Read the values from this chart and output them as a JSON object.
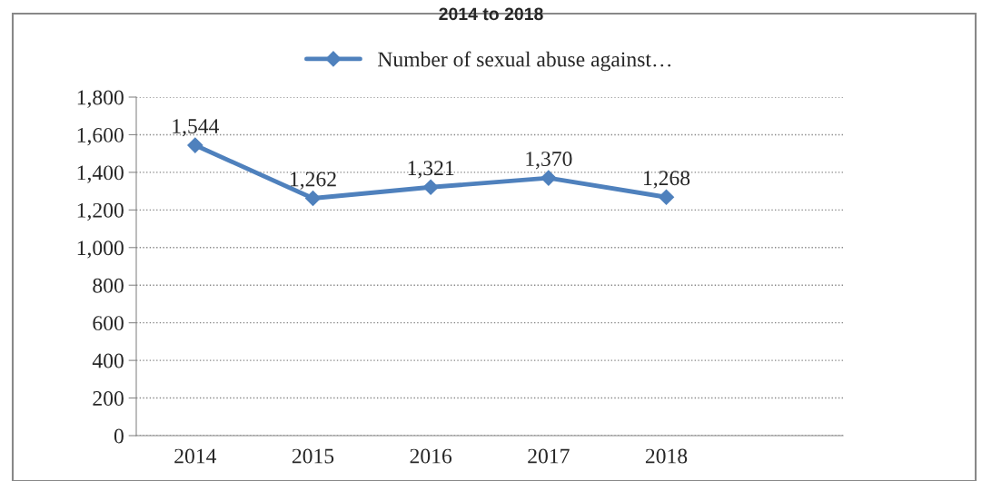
{
  "chart_data": {
    "type": "line",
    "title": "2014 to 2018",
    "categories": [
      "2014",
      "2015",
      "2016",
      "2017",
      "2018",
      null
    ],
    "series": [
      {
        "name": "Number of sexual abuse against…",
        "color": "#4f81bd",
        "values": [
          1544,
          1262,
          1321,
          1370,
          1268,
          null
        ],
        "value_labels": [
          "1,544",
          "1,262",
          "1,321",
          "1,370",
          "1,268",
          null
        ]
      }
    ],
    "ylim": [
      0,
      1800
    ],
    "yticks": [
      {
        "value": 0,
        "label": "0"
      },
      {
        "value": 200,
        "label": "200"
      },
      {
        "value": 400,
        "label": "400"
      },
      {
        "value": 600,
        "label": "600"
      },
      {
        "value": 800,
        "label": "800"
      },
      {
        "value": 1000,
        "label": "1,000"
      },
      {
        "value": 1200,
        "label": "1,200"
      },
      {
        "value": 1400,
        "label": "1,400"
      },
      {
        "value": 1600,
        "label": "1,600"
      },
      {
        "value": 1800,
        "label": "1,800"
      }
    ],
    "grid": "y",
    "legend": "top",
    "marker": "diamond",
    "line_style": "solid"
  }
}
